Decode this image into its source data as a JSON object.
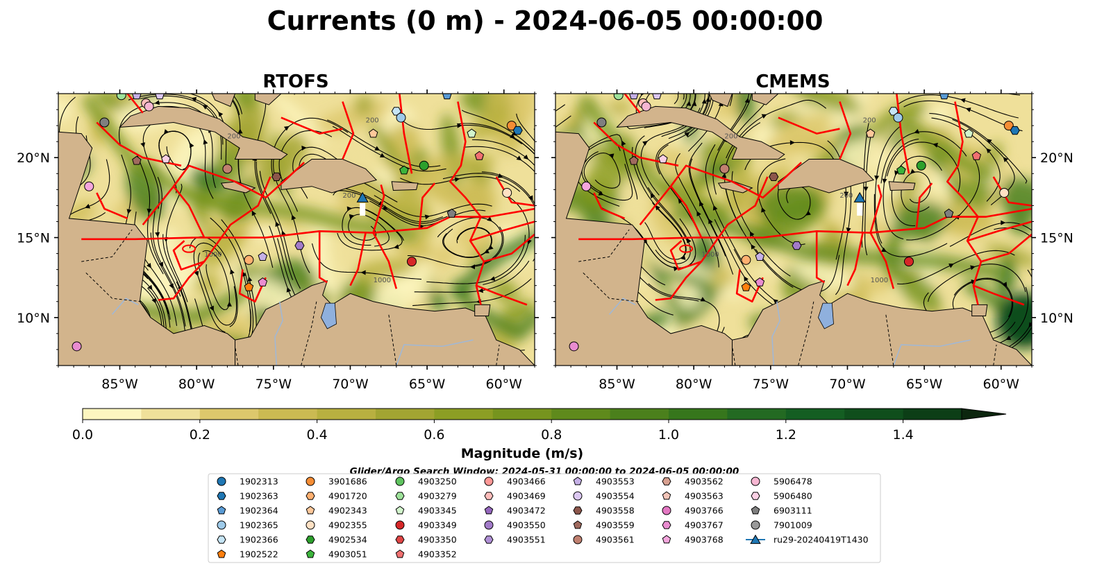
{
  "title": "Currents (0 m) - 2024-06-05 00:00:00",
  "panels": [
    {
      "title": "RTOFS",
      "seed": 11,
      "lon_ticks": [
        "85°W",
        "80°W",
        "75°W",
        "70°W",
        "65°W",
        "60°W"
      ],
      "lat_ticks": [
        "20°N",
        "15°N",
        "10°N"
      ]
    },
    {
      "title": "CMEMS",
      "seed": 47,
      "lon_ticks": [
        "85°W",
        "80°W",
        "75°W",
        "70°W",
        "65°W",
        "60°W"
      ],
      "lat_ticks": [
        "20°N",
        "15°N",
        "10°N"
      ]
    }
  ],
  "map_extent": {
    "lon_min": -89,
    "lon_max": -58,
    "lat_min": 7,
    "lat_max": 24
  },
  "lon_tick_values": [
    -85,
    -80,
    -75,
    -70,
    -65,
    -60
  ],
  "lat_tick_values": [
    20,
    15,
    10
  ],
  "colors": {
    "land": "#d2b48c",
    "lake": "#8fb0dd",
    "river": "#9fb8d8",
    "eez_lines": "#ff0000",
    "streamlines": "#000000",
    "glider": "#1f77b4"
  },
  "colorbar": {
    "label": "Magnitude (m/s)",
    "tick_labels": [
      "0.0",
      "0.2",
      "0.4",
      "0.6",
      "0.8",
      "1.0",
      "1.2",
      "1.4"
    ],
    "tick_values": [
      0.0,
      0.2,
      0.4,
      0.6,
      0.8,
      1.0,
      1.2,
      1.4
    ],
    "min": 0.0,
    "max": 1.5,
    "extend": "max",
    "colors": [
      "#fdf6c0",
      "#efe09a",
      "#ddc86c",
      "#cbba52",
      "#b8b040",
      "#a2a532",
      "#8c9e24",
      "#76941e",
      "#5f8a1c",
      "#4b801c",
      "#36761c",
      "#236a22",
      "#145e22",
      "#0f4e1c",
      "#0c3e16",
      "#0a3012",
      "#0c260e"
    ]
  },
  "search_window": "Glider/Argo Search Window: 2024-05-31 00:00:00 to 2024-06-05 00:00:00",
  "legend": {
    "columns": [
      [
        {
          "label": "1902313",
          "color": "#1f77b4",
          "marker": "circle"
        },
        {
          "label": "1902363",
          "color": "#1f77b4",
          "marker": "hexagon"
        },
        {
          "label": "1902364",
          "color": "#5a9bd5",
          "marker": "pentagon"
        },
        {
          "label": "1902365",
          "color": "#9ecae9",
          "marker": "circle"
        },
        {
          "label": "1902366",
          "color": "#c6e5f5",
          "marker": "hexagon"
        },
        {
          "label": "1902522",
          "color": "#ff7f0e",
          "marker": "pentagon"
        }
      ],
      [
        {
          "label": "3901686",
          "color": "#f58d35",
          "marker": "circle"
        },
        {
          "label": "4901720",
          "color": "#ffb070",
          "marker": "hexagon"
        },
        {
          "label": "4902343",
          "color": "#ffc89a",
          "marker": "pentagon"
        },
        {
          "label": "4902355",
          "color": "#ffe1c4",
          "marker": "circle"
        },
        {
          "label": "4902534",
          "color": "#2ca02c",
          "marker": "hexagon"
        },
        {
          "label": "4903051",
          "color": "#3cb43c",
          "marker": "pentagon"
        }
      ],
      [
        {
          "label": "4903250",
          "color": "#5fc35f",
          "marker": "circle"
        },
        {
          "label": "4903279",
          "color": "#9ee29a",
          "marker": "hexagon"
        },
        {
          "label": "4903345",
          "color": "#d2f5cc",
          "marker": "pentagon"
        },
        {
          "label": "4903349",
          "color": "#d62728",
          "marker": "circle"
        },
        {
          "label": "4903350",
          "color": "#e04545",
          "marker": "hexagon"
        },
        {
          "label": "4903352",
          "color": "#f07070",
          "marker": "pentagon"
        }
      ],
      [
        {
          "label": "4903466",
          "color": "#ff9896",
          "marker": "circle"
        },
        {
          "label": "4903469",
          "color": "#ffbdbb",
          "marker": "hexagon"
        },
        {
          "label": "4903472",
          "color": "#9467bd",
          "marker": "pentagon"
        },
        {
          "label": "4903550",
          "color": "#a27bc9",
          "marker": "circle"
        },
        {
          "label": "4903551",
          "color": "#b090d6",
          "marker": "hexagon"
        }
      ],
      [
        {
          "label": "4903553",
          "color": "#c5b0e6",
          "marker": "pentagon"
        },
        {
          "label": "4903554",
          "color": "#dcc8f2",
          "marker": "circle"
        },
        {
          "label": "4903558",
          "color": "#8c564b",
          "marker": "hexagon"
        },
        {
          "label": "4903559",
          "color": "#a06a5e",
          "marker": "pentagon"
        },
        {
          "label": "4903561",
          "color": "#c08070",
          "marker": "circle"
        }
      ],
      [
        {
          "label": "4903562",
          "color": "#d8a090",
          "marker": "hexagon"
        },
        {
          "label": "4903563",
          "color": "#f2c4b8",
          "marker": "pentagon"
        },
        {
          "label": "4903766",
          "color": "#e377c2",
          "marker": "circle"
        },
        {
          "label": "4903767",
          "color": "#e98cd0",
          "marker": "hexagon"
        },
        {
          "label": "4903768",
          "color": "#f5a6dd",
          "marker": "pentagon"
        }
      ],
      [
        {
          "label": "5906478",
          "color": "#f7b6d2",
          "marker": "circle"
        },
        {
          "label": "5906480",
          "color": "#fbd0e4",
          "marker": "hexagon"
        },
        {
          "label": "6903111",
          "color": "#7f7f7f",
          "marker": "pentagon"
        },
        {
          "label": "7901009",
          "color": "#999999",
          "marker": "circle"
        },
        {
          "label": "ru29-20240419T1430",
          "color": "#1f77b4",
          "marker": "triangle-line"
        }
      ]
    ]
  },
  "floats": [
    {
      "lon": -84.9,
      "lat": 23.9,
      "color": "#9ee29a",
      "marker": "circle"
    },
    {
      "lon": -83.9,
      "lat": 23.9,
      "color": "#c5b0e6",
      "marker": "pentagon"
    },
    {
      "lon": -83.3,
      "lat": 23.4,
      "color": "#ffbdbb",
      "marker": "circle"
    },
    {
      "lon": -83.1,
      "lat": 23.2,
      "color": "#f7b6d2",
      "marker": "circle"
    },
    {
      "lon": -82.4,
      "lat": 23.9,
      "color": "#dcc8f2",
      "marker": "pentagon"
    },
    {
      "lon": -86.0,
      "lat": 22.2,
      "color": "#7f7f7f",
      "marker": "circle"
    },
    {
      "lon": -67.0,
      "lat": 22.9,
      "color": "#c6e5f5",
      "marker": "hexagon"
    },
    {
      "lon": -66.7,
      "lat": 22.5,
      "color": "#9ecae9",
      "marker": "circle"
    },
    {
      "lon": -63.7,
      "lat": 23.9,
      "color": "#5a9bd5",
      "marker": "pentagon"
    },
    {
      "lon": -59.5,
      "lat": 22.0,
      "color": "#f58d35",
      "marker": "circle"
    },
    {
      "lon": -59.1,
      "lat": 21.7,
      "color": "#1f77b4",
      "marker": "hexagon"
    },
    {
      "lon": -62.1,
      "lat": 21.5,
      "color": "#d2f5cc",
      "marker": "pentagon"
    },
    {
      "lon": -68.5,
      "lat": 21.5,
      "color": "#ffc89a",
      "marker": "pentagon"
    },
    {
      "lon": -83.9,
      "lat": 19.8,
      "color": "#a06a5e",
      "marker": "pentagon"
    },
    {
      "lon": -82.0,
      "lat": 19.9,
      "color": "#fbd0e4",
      "marker": "pentagon"
    },
    {
      "lon": -78.0,
      "lat": 19.3,
      "color": "#c08070",
      "marker": "circle"
    },
    {
      "lon": -74.8,
      "lat": 18.8,
      "color": "#8c564b",
      "marker": "hexagon"
    },
    {
      "lon": -66.5,
      "lat": 19.2,
      "color": "#3cb43c",
      "marker": "pentagon"
    },
    {
      "lon": -65.2,
      "lat": 19.5,
      "color": "#2ca02c",
      "marker": "circle"
    },
    {
      "lon": -61.6,
      "lat": 20.1,
      "color": "#f07070",
      "marker": "pentagon"
    },
    {
      "lon": -87.0,
      "lat": 18.2,
      "color": "#f5a6dd",
      "marker": "circle"
    },
    {
      "lon": -59.8,
      "lat": 17.8,
      "color": "#ffe1c4",
      "marker": "circle"
    },
    {
      "lon": -63.4,
      "lat": 16.5,
      "color": "#7f7f7f",
      "marker": "pentagon"
    },
    {
      "lon": -73.3,
      "lat": 14.5,
      "color": "#a27bc9",
      "marker": "hexagon"
    },
    {
      "lon": -76.6,
      "lat": 13.6,
      "color": "#ffb070",
      "marker": "circle"
    },
    {
      "lon": -75.7,
      "lat": 13.8,
      "color": "#c5b0e6",
      "marker": "pentagon"
    },
    {
      "lon": -66.0,
      "lat": 13.5,
      "color": "#d62728",
      "marker": "circle"
    },
    {
      "lon": -76.6,
      "lat": 11.9,
      "color": "#ff7f0e",
      "marker": "pentagon"
    },
    {
      "lon": -75.7,
      "lat": 12.2,
      "color": "#e98cd0",
      "marker": "pentagon"
    },
    {
      "lon": -87.8,
      "lat": 8.2,
      "color": "#e98cd0",
      "marker": "circle"
    }
  ],
  "glider": {
    "lon": -69.2,
    "lat": 17.5,
    "color": "#1f77b4"
  },
  "contour_labels": [
    "200",
    "200",
    "1000",
    "200",
    "1000"
  ]
}
